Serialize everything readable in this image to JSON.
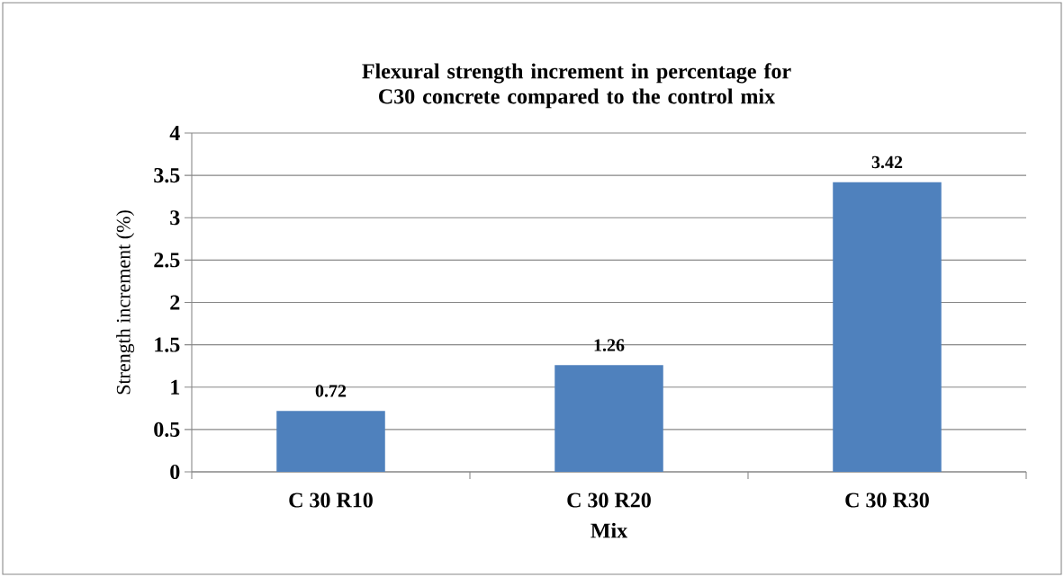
{
  "chart_data": {
    "type": "bar",
    "title": "Flexural strength increment in percentage for C30 concrete compared to the control mix",
    "xlabel": "Mix",
    "ylabel": "Strength increment (%)",
    "categories": [
      "C 30 R10",
      "C 30 R20",
      "C 30 R30"
    ],
    "values": [
      0.72,
      1.26,
      3.42
    ],
    "color": "#4f81bd",
    "ylim": [
      0,
      4
    ],
    "yticks": [
      0,
      0.5,
      1,
      1.5,
      2,
      2.5,
      3,
      3.5,
      4
    ],
    "grid": "y",
    "data_labels": true
  }
}
